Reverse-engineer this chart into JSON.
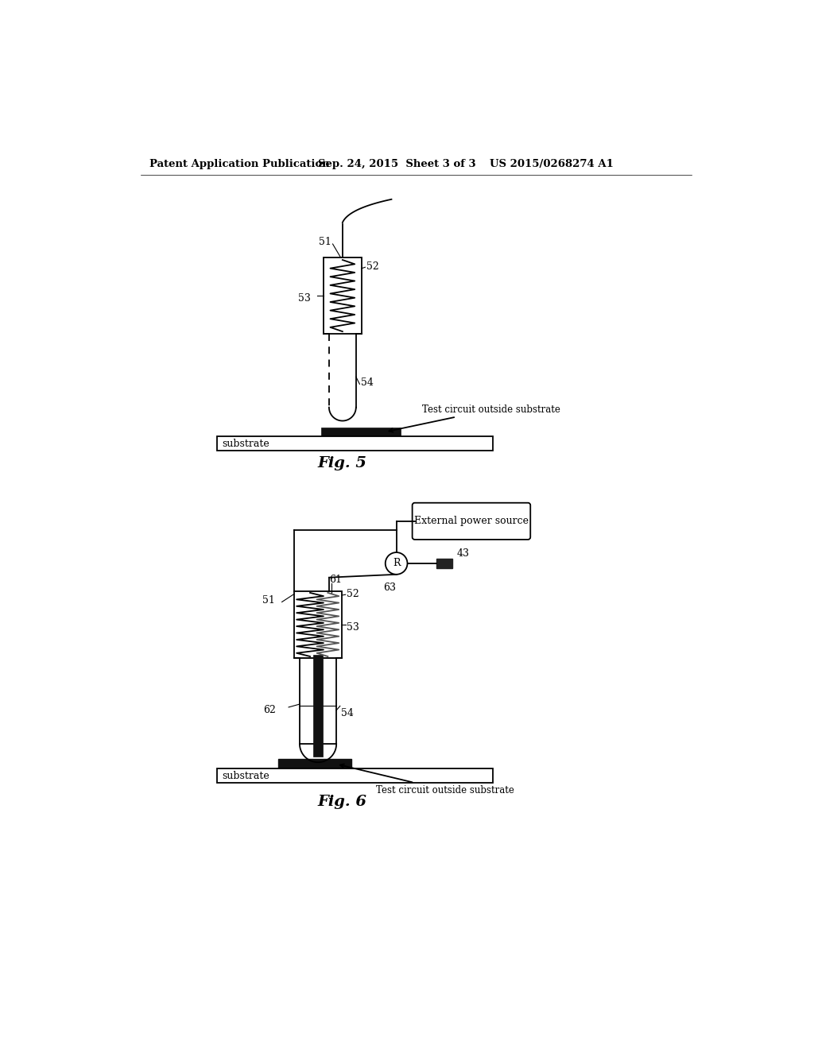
{
  "bg_color": "#ffffff",
  "header_left": "Patent Application Publication",
  "header_mid": "Sep. 24, 2015  Sheet 3 of 3",
  "header_right": "US 2015/0268274 A1",
  "fig5_label": "Fig. 5",
  "fig6_label": "Fig. 6",
  "label_51_fig5": "51",
  "label_52_fig5": "52",
  "label_53_fig5": "53",
  "label_54_fig5": "54",
  "label_test_circuit_fig5": "Test circuit outside substrate",
  "label_substrate_fig5": "substrate",
  "label_51_fig6": "51",
  "label_52_fig6": "52",
  "label_53_fig6": "53",
  "label_54_fig6": "54",
  "label_61_fig6": "61",
  "label_62_fig6": "62",
  "label_63_fig6": "63",
  "label_43_fig6": "43",
  "label_R": "R",
  "label_test_circuit_fig6": "Test circuit outside substrate",
  "label_substrate_fig6": "substrate",
  "label_ext_power": "External power source",
  "line_color": "#000000"
}
